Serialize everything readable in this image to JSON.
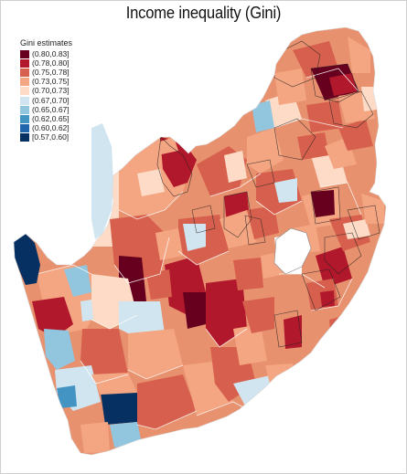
{
  "title": "Income inequality (Gini)",
  "legend": {
    "title": "Gini estimates",
    "items": [
      {
        "label": "(0.80,0.83]",
        "color": "#67001f"
      },
      {
        "label": "(0.78,0.80]",
        "color": "#b2182b"
      },
      {
        "label": "(0.75,0.78]",
        "color": "#d6604d"
      },
      {
        "label": "(0.73,0.75]",
        "color": "#f4a582"
      },
      {
        "label": "(0.70,0.73]",
        "color": "#fddbc7"
      },
      {
        "label": "(0.67,0.70]",
        "color": "#d1e5f0"
      },
      {
        "label": "(0.65,0.67]",
        "color": "#92c5de"
      },
      {
        "label": "(0.62,0.65]",
        "color": "#4393c3"
      },
      {
        "label": "(0.60,0.62]",
        "color": "#2166ac"
      },
      {
        "label": "[0.57,0.60]",
        "color": "#053061"
      }
    ]
  }
}
